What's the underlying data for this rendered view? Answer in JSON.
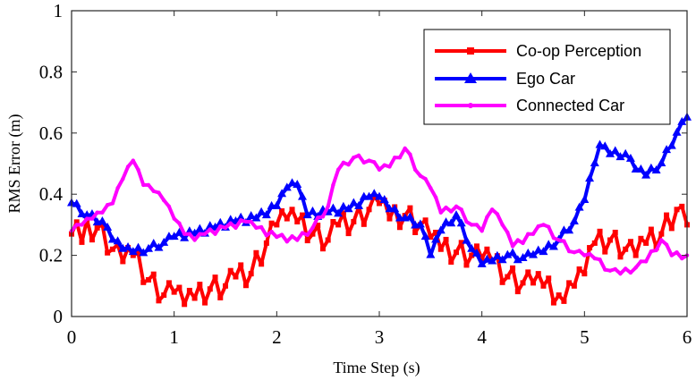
{
  "chart_data": {
    "type": "line",
    "xlabel": "Time Step (s)",
    "ylabel": "RMS Error (m)",
    "xlim": [
      0,
      6
    ],
    "ylim": [
      0,
      1
    ],
    "x_ticks": [
      "0",
      "1",
      "2",
      "3",
      "4",
      "5",
      "6"
    ],
    "y_ticks": [
      "0",
      "0.2",
      "0.4",
      "0.6",
      "0.8",
      "1"
    ],
    "legend_position": "top-right",
    "series": [
      {
        "name": "Co-op Perception",
        "color": "#ff0000",
        "marker": "square",
        "x": [
          0,
          0.25,
          0.4,
          0.5,
          0.6,
          0.75,
          0.9,
          1.0,
          1.1,
          1.2,
          1.35,
          1.5,
          1.6,
          1.75,
          1.9,
          2.0,
          2.1,
          2.2,
          2.35,
          2.5,
          2.6,
          2.75,
          2.9,
          3.0,
          3.1,
          3.25,
          3.4,
          3.5,
          3.6,
          3.75,
          3.9,
          4.0,
          4.1,
          4.25,
          4.4,
          4.5,
          4.6,
          4.75,
          4.8,
          4.9,
          5.0,
          5.1,
          5.25,
          5.4,
          5.5,
          5.6,
          5.75,
          5.9,
          6.0
        ],
        "values": [
          0.27,
          0.29,
          0.22,
          0.18,
          0.2,
          0.12,
          0.07,
          0.08,
          0.04,
          0.06,
          0.09,
          0.1,
          0.13,
          0.14,
          0.24,
          0.3,
          0.32,
          0.31,
          0.27,
          0.25,
          0.3,
          0.31,
          0.35,
          0.37,
          0.32,
          0.33,
          0.3,
          0.26,
          0.22,
          0.21,
          0.2,
          0.19,
          0.18,
          0.13,
          0.11,
          0.11,
          0.1,
          0.07,
          0.05,
          0.1,
          0.14,
          0.24,
          0.25,
          0.22,
          0.2,
          0.24,
          0.27,
          0.35,
          0.3
        ]
      },
      {
        "name": "Ego Car",
        "color": "#0000ff",
        "marker": "triangle",
        "x": [
          0,
          0.15,
          0.3,
          0.4,
          0.5,
          0.6,
          0.75,
          0.9,
          1.0,
          1.2,
          1.4,
          1.6,
          1.8,
          2.0,
          2.1,
          2.2,
          2.3,
          2.5,
          2.7,
          2.9,
          3.0,
          3.1,
          3.25,
          3.4,
          3.5,
          3.6,
          3.75,
          3.9,
          4.0,
          4.1,
          4.25,
          4.4,
          4.5,
          4.6,
          4.75,
          4.9,
          5.0,
          5.1,
          5.15,
          5.25,
          5.4,
          5.5,
          5.6,
          5.75,
          5.9,
          6.0
        ],
        "values": [
          0.37,
          0.33,
          0.31,
          0.25,
          0.22,
          0.21,
          0.22,
          0.24,
          0.26,
          0.27,
          0.29,
          0.31,
          0.32,
          0.36,
          0.42,
          0.43,
          0.33,
          0.34,
          0.35,
          0.39,
          0.39,
          0.35,
          0.32,
          0.3,
          0.2,
          0.28,
          0.33,
          0.22,
          0.17,
          0.18,
          0.2,
          0.19,
          0.2,
          0.21,
          0.25,
          0.31,
          0.38,
          0.5,
          0.56,
          0.53,
          0.53,
          0.48,
          0.46,
          0.5,
          0.6,
          0.65
        ]
      },
      {
        "name": "Connected Car",
        "color": "#ff00ff",
        "marker": "point",
        "x": [
          0,
          0.1,
          0.2,
          0.3,
          0.4,
          0.5,
          0.6,
          0.7,
          0.8,
          0.9,
          1.0,
          1.1,
          1.2,
          1.3,
          1.5,
          1.7,
          1.8,
          2.0,
          2.2,
          2.35,
          2.5,
          2.6,
          2.75,
          2.9,
          3.0,
          3.1,
          3.25,
          3.4,
          3.5,
          3.6,
          3.75,
          3.9,
          4.0,
          4.1,
          4.2,
          4.3,
          4.5,
          4.6,
          4.75,
          4.9,
          5.0,
          5.1,
          5.25,
          5.35,
          5.5,
          5.6,
          5.75,
          5.85,
          6.0
        ],
        "values": [
          0.28,
          0.3,
          0.32,
          0.34,
          0.37,
          0.45,
          0.51,
          0.43,
          0.41,
          0.38,
          0.32,
          0.27,
          0.25,
          0.27,
          0.29,
          0.31,
          0.29,
          0.26,
          0.25,
          0.29,
          0.36,
          0.48,
          0.52,
          0.51,
          0.48,
          0.49,
          0.55,
          0.46,
          0.42,
          0.34,
          0.36,
          0.3,
          0.28,
          0.35,
          0.3,
          0.23,
          0.27,
          0.3,
          0.25,
          0.21,
          0.2,
          0.19,
          0.15,
          0.14,
          0.16,
          0.18,
          0.25,
          0.2,
          0.2
        ]
      }
    ]
  }
}
